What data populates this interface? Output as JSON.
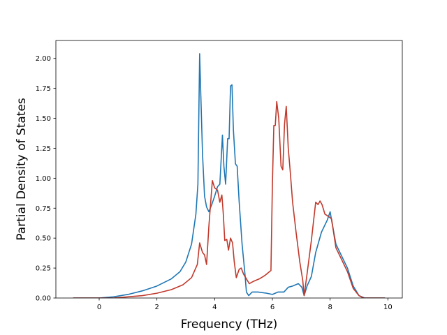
{
  "chart_data": {
    "type": "line",
    "title": "",
    "xlabel": "Frequency (THz)",
    "ylabel": "Partial Density of States",
    "xlim": [
      -1.5,
      10.5
    ],
    "ylim": [
      0.0,
      2.15
    ],
    "x_ticks": [
      0,
      2,
      4,
      6,
      8,
      10
    ],
    "y_ticks": [
      0.0,
      0.25,
      0.5,
      0.75,
      1.0,
      1.25,
      1.5,
      1.75,
      2.0
    ],
    "x_tick_labels": [
      "0",
      "2",
      "4",
      "6",
      "8",
      "10"
    ],
    "y_tick_labels": [
      "0.00",
      "0.25",
      "0.50",
      "0.75",
      "1.00",
      "1.25",
      "1.50",
      "1.75",
      "2.00"
    ],
    "grid": false,
    "legend": "none",
    "series": [
      {
        "color": "#1f77b4",
        "points": [
          [
            -0.9,
            0.0
          ],
          [
            0.0,
            0.0
          ],
          [
            0.5,
            0.01
          ],
          [
            1.0,
            0.03
          ],
          [
            1.5,
            0.06
          ],
          [
            2.0,
            0.1
          ],
          [
            2.5,
            0.16
          ],
          [
            2.8,
            0.22
          ],
          [
            3.0,
            0.3
          ],
          [
            3.2,
            0.45
          ],
          [
            3.35,
            0.7
          ],
          [
            3.42,
            0.95
          ],
          [
            3.48,
            2.04
          ],
          [
            3.52,
            1.7
          ],
          [
            3.58,
            1.2
          ],
          [
            3.65,
            0.85
          ],
          [
            3.72,
            0.76
          ],
          [
            3.8,
            0.72
          ],
          [
            3.9,
            0.78
          ],
          [
            4.0,
            0.85
          ],
          [
            4.1,
            0.93
          ],
          [
            4.18,
            0.95
          ],
          [
            4.27,
            1.36
          ],
          [
            4.32,
            1.1
          ],
          [
            4.38,
            0.95
          ],
          [
            4.45,
            1.33
          ],
          [
            4.5,
            1.33
          ],
          [
            4.55,
            1.77
          ],
          [
            4.6,
            1.78
          ],
          [
            4.65,
            1.4
          ],
          [
            4.72,
            1.12
          ],
          [
            4.78,
            1.1
          ],
          [
            4.85,
            0.8
          ],
          [
            4.95,
            0.45
          ],
          [
            5.05,
            0.2
          ],
          [
            5.1,
            0.05
          ],
          [
            5.18,
            0.02
          ],
          [
            5.3,
            0.05
          ],
          [
            5.5,
            0.05
          ],
          [
            5.8,
            0.04
          ],
          [
            6.0,
            0.03
          ],
          [
            6.2,
            0.05
          ],
          [
            6.4,
            0.05
          ],
          [
            6.55,
            0.09
          ],
          [
            6.7,
            0.1
          ],
          [
            6.9,
            0.12
          ],
          [
            7.02,
            0.09
          ],
          [
            7.1,
            0.02
          ],
          [
            7.2,
            0.1
          ],
          [
            7.35,
            0.18
          ],
          [
            7.5,
            0.38
          ],
          [
            7.7,
            0.55
          ],
          [
            7.9,
            0.65
          ],
          [
            8.0,
            0.72
          ],
          [
            8.05,
            0.65
          ],
          [
            8.2,
            0.45
          ],
          [
            8.4,
            0.35
          ],
          [
            8.6,
            0.25
          ],
          [
            8.8,
            0.1
          ],
          [
            9.0,
            0.02
          ],
          [
            9.2,
            0.0
          ],
          [
            9.9,
            0.0
          ]
        ]
      },
      {
        "color": "#c0392b",
        "points": [
          [
            -0.9,
            0.0
          ],
          [
            0.5,
            0.0
          ],
          [
            1.0,
            0.01
          ],
          [
            1.5,
            0.02
          ],
          [
            2.0,
            0.04
          ],
          [
            2.5,
            0.07
          ],
          [
            2.9,
            0.11
          ],
          [
            3.2,
            0.17
          ],
          [
            3.4,
            0.28
          ],
          [
            3.48,
            0.46
          ],
          [
            3.58,
            0.38
          ],
          [
            3.65,
            0.36
          ],
          [
            3.72,
            0.28
          ],
          [
            3.8,
            0.6
          ],
          [
            3.92,
            0.98
          ],
          [
            4.0,
            0.92
          ],
          [
            4.1,
            0.9
          ],
          [
            4.18,
            0.8
          ],
          [
            4.25,
            0.86
          ],
          [
            4.3,
            0.7
          ],
          [
            4.35,
            0.48
          ],
          [
            4.42,
            0.49
          ],
          [
            4.48,
            0.4
          ],
          [
            4.55,
            0.5
          ],
          [
            4.62,
            0.46
          ],
          [
            4.68,
            0.3
          ],
          [
            4.75,
            0.17
          ],
          [
            4.85,
            0.24
          ],
          [
            4.92,
            0.25
          ],
          [
            5.0,
            0.2
          ],
          [
            5.1,
            0.16
          ],
          [
            5.2,
            0.12
          ],
          [
            5.35,
            0.14
          ],
          [
            5.55,
            0.16
          ],
          [
            5.75,
            0.19
          ],
          [
            5.95,
            0.23
          ],
          [
            6.0,
            0.95
          ],
          [
            6.05,
            1.44
          ],
          [
            6.1,
            1.44
          ],
          [
            6.15,
            1.64
          ],
          [
            6.22,
            1.5
          ],
          [
            6.3,
            1.1
          ],
          [
            6.36,
            1.07
          ],
          [
            6.42,
            1.45
          ],
          [
            6.48,
            1.6
          ],
          [
            6.55,
            1.25
          ],
          [
            6.62,
            1.05
          ],
          [
            6.7,
            0.8
          ],
          [
            6.82,
            0.55
          ],
          [
            6.95,
            0.3
          ],
          [
            7.05,
            0.15
          ],
          [
            7.1,
            0.02
          ],
          [
            7.2,
            0.2
          ],
          [
            7.35,
            0.48
          ],
          [
            7.5,
            0.8
          ],
          [
            7.58,
            0.78
          ],
          [
            7.65,
            0.81
          ],
          [
            7.72,
            0.78
          ],
          [
            7.82,
            0.7
          ],
          [
            7.95,
            0.68
          ],
          [
            8.05,
            0.66
          ],
          [
            8.2,
            0.42
          ],
          [
            8.4,
            0.32
          ],
          [
            8.6,
            0.22
          ],
          [
            8.8,
            0.08
          ],
          [
            9.0,
            0.02
          ],
          [
            9.15,
            0.0
          ],
          [
            9.9,
            0.0
          ]
        ]
      }
    ]
  }
}
